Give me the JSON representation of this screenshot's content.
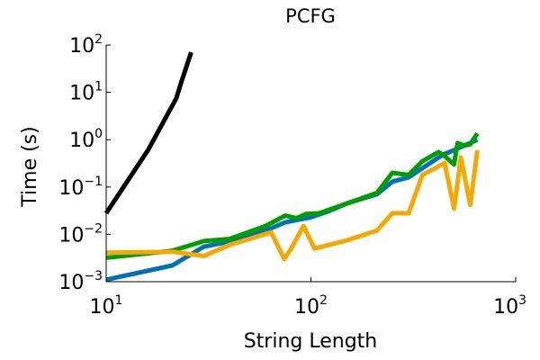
{
  "chart_data": {
    "type": "line",
    "title": "PCFG",
    "xlabel": "String Length",
    "ylabel": "Time (s)",
    "xscale": "log",
    "yscale": "log",
    "xlim": [
      10,
      1000
    ],
    "ylim": [
      0.001,
      100
    ],
    "grid": false,
    "legend": "none",
    "xticks": [
      {
        "value": 10,
        "base": "10",
        "exp": "1"
      },
      {
        "value": 100,
        "base": "10",
        "exp": "2"
      },
      {
        "value": 1000,
        "base": "10",
        "exp": "3"
      }
    ],
    "yticks": [
      {
        "value": 0.001,
        "base": "10",
        "exp": "−3"
      },
      {
        "value": 0.01,
        "base": "10",
        "exp": "−2"
      },
      {
        "value": 0.1,
        "base": "10",
        "exp": "−1"
      },
      {
        "value": 1,
        "base": "10",
        "exp": "0"
      },
      {
        "value": 10,
        "base": "10",
        "exp": "1"
      },
      {
        "value": 100,
        "base": "10",
        "exp": "2"
      }
    ],
    "series": [
      {
        "color": "#0072b2",
        "x": [
          10,
          21,
          30,
          40,
          60,
          75,
          85,
          100,
          120,
          150,
          210,
          250,
          300,
          350,
          420,
          450,
          500,
          520,
          560,
          600,
          650
        ],
        "y": [
          0.0011,
          0.0022,
          0.0055,
          0.007,
          0.012,
          0.018,
          0.02,
          0.023,
          0.03,
          0.045,
          0.07,
          0.13,
          0.16,
          0.25,
          0.42,
          0.5,
          0.6,
          0.65,
          0.75,
          0.85,
          1.0
        ]
      },
      {
        "color": "#009e00",
        "x": [
          10,
          21,
          30,
          40,
          60,
          75,
          85,
          95,
          110,
          150,
          210,
          250,
          300,
          350,
          420,
          450,
          500,
          520,
          560,
          600,
          650
        ],
        "y": [
          0.0032,
          0.0045,
          0.0072,
          0.008,
          0.015,
          0.025,
          0.022,
          0.027,
          0.028,
          0.045,
          0.075,
          0.2,
          0.18,
          0.35,
          0.55,
          0.45,
          0.3,
          0.85,
          0.75,
          0.8,
          1.35
        ]
      },
      {
        "color": "#f5a800",
        "x": [
          10,
          21,
          30,
          40,
          64,
          74,
          80,
          92,
          104,
          150,
          210,
          250,
          300,
          350,
          450,
          500,
          540,
          600,
          650
        ],
        "y": [
          0.0041,
          0.0043,
          0.0035,
          0.006,
          0.011,
          0.003,
          0.005,
          0.015,
          0.005,
          0.0075,
          0.012,
          0.028,
          0.028,
          0.18,
          0.32,
          0.035,
          0.42,
          0.042,
          0.6
        ]
      },
      {
        "color": "#000000",
        "x": [
          10,
          16,
          22,
          23,
          26
        ],
        "y": [
          0.028,
          0.6,
          7.5,
          14,
          70
        ]
      }
    ]
  }
}
